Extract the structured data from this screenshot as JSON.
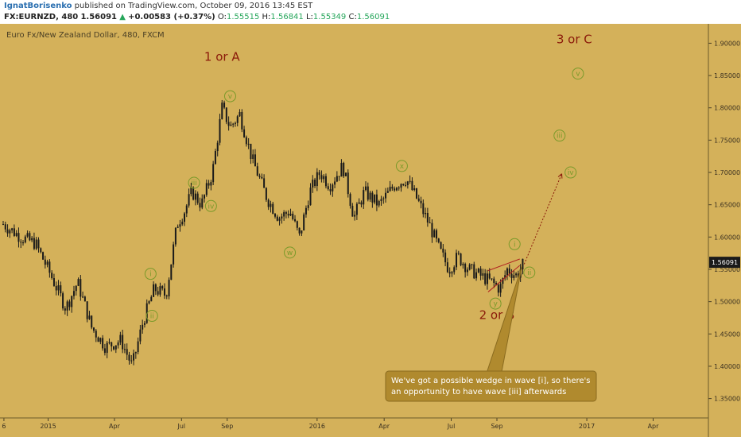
{
  "header": {
    "author": "IgnatBorisenko",
    "published_text": " published on TradingView.com, October 09, 2016 13:45 EST",
    "symbol_interval": "FX:EURNZD, 480",
    "last": "1.56091",
    "change_arrow": "▲",
    "change": "+0.00583 (+0.37%)",
    "o_label": "O:",
    "o_value": "1.55515",
    "h_label": "H:",
    "h_value": "1.56841",
    "l_label": "L:",
    "l_value": "1.55349",
    "c_label": "C:",
    "c_value": "1.56091"
  },
  "colors": {
    "background": "#d4b15a",
    "candle": "#1a1a1a",
    "wave_circle": "#7a9a2a",
    "wave_label": "#8b1a0a",
    "callout_bg": "#b08a2e"
  },
  "chart_data": {
    "type": "candlestick",
    "title": "Euro Fx/New Zealand Dollar, 480, FXCM",
    "ylim": [
      1.32,
      1.93
    ],
    "yticks": [
      "1.90000",
      "1.85000",
      "1.80000",
      "1.75000",
      "1.70000",
      "1.65000",
      "1.60000",
      "1.55000",
      "1.50000",
      "1.45000",
      "1.40000",
      "1.35000"
    ],
    "ytick_values": [
      1.9,
      1.85,
      1.8,
      1.75,
      1.7,
      1.65,
      1.6,
      1.55,
      1.5,
      1.45,
      1.4,
      1.35
    ],
    "last_price_label": "1.56091",
    "last_price": 1.56091,
    "xlim": [
      "2014-11-01",
      "2017-06-15"
    ],
    "xticks": [
      {
        "label": "6",
        "date": "2014-11-02"
      },
      {
        "label": "2015",
        "date": "2015-01-01"
      },
      {
        "label": "Apr",
        "date": "2015-04-01"
      },
      {
        "label": "Jul",
        "date": "2015-07-01"
      },
      {
        "label": "Sep",
        "date": "2015-09-01"
      },
      {
        "label": "2016",
        "date": "2016-01-01"
      },
      {
        "label": "Apr",
        "date": "2016-04-01"
      },
      {
        "label": "Jul",
        "date": "2016-07-01"
      },
      {
        "label": "Sep",
        "date": "2016-09-01"
      },
      {
        "label": "2017",
        "date": "2017-01-01"
      },
      {
        "label": "Apr",
        "date": "2017-04-01"
      }
    ],
    "price_path": [
      [
        "2014-11-01",
        1.62
      ],
      [
        "2014-11-25",
        1.6
      ],
      [
        "2014-12-15",
        1.59
      ],
      [
        "2015-01-05",
        1.54
      ],
      [
        "2015-01-25",
        1.49
      ],
      [
        "2015-02-10",
        1.53
      ],
      [
        "2015-03-01",
        1.46
      ],
      [
        "2015-03-20",
        1.43
      ],
      [
        "2015-04-10",
        1.44
      ],
      [
        "2015-04-25",
        1.4
      ],
      [
        "2015-05-10",
        1.47
      ],
      [
        "2015-05-25",
        1.52
      ],
      [
        "2015-06-10",
        1.51
      ],
      [
        "2015-06-25",
        1.62
      ],
      [
        "2015-07-05",
        1.64
      ],
      [
        "2015-07-15",
        1.67
      ],
      [
        "2015-07-28",
        1.65
      ],
      [
        "2015-08-12",
        1.7
      ],
      [
        "2015-08-25",
        1.8
      ],
      [
        "2015-09-05",
        1.77
      ],
      [
        "2015-09-18",
        1.79
      ],
      [
        "2015-10-05",
        1.72
      ],
      [
        "2015-10-25",
        1.66
      ],
      [
        "2015-11-10",
        1.63
      ],
      [
        "2015-11-25",
        1.64
      ],
      [
        "2015-12-08",
        1.6
      ],
      [
        "2015-12-22",
        1.67
      ],
      [
        "2016-01-05",
        1.7
      ],
      [
        "2016-01-18",
        1.68
      ],
      [
        "2016-02-05",
        1.71
      ],
      [
        "2016-02-20",
        1.63
      ],
      [
        "2016-03-05",
        1.67
      ],
      [
        "2016-03-25",
        1.65
      ],
      [
        "2016-04-15",
        1.68
      ],
      [
        "2016-05-01",
        1.69
      ],
      [
        "2016-05-15",
        1.66
      ],
      [
        "2016-06-01",
        1.62
      ],
      [
        "2016-06-15",
        1.58
      ],
      [
        "2016-06-28",
        1.55
      ],
      [
        "2016-07-10",
        1.57
      ],
      [
        "2016-07-25",
        1.55
      ],
      [
        "2016-08-10",
        1.54
      ],
      [
        "2016-08-25",
        1.53
      ],
      [
        "2016-09-05",
        1.52
      ],
      [
        "2016-09-15",
        1.55
      ],
      [
        "2016-09-28",
        1.54
      ],
      [
        "2016-10-08",
        1.56091
      ]
    ],
    "wave_labels": [
      {
        "text": "1 or A",
        "date": "2015-08-25",
        "price": 1.873
      },
      {
        "text": "2 or B",
        "date": "2016-09-01",
        "price": 1.473
      },
      {
        "text": "3 or C",
        "date": "2016-12-15",
        "price": 1.9
      }
    ],
    "wave_circles": [
      {
        "text": "i",
        "date": "2015-05-20",
        "price": 1.543
      },
      {
        "text": "ii",
        "date": "2015-05-22",
        "price": 1.478
      },
      {
        "text": "iii",
        "date": "2015-07-18",
        "price": 1.684
      },
      {
        "text": "iv",
        "date": "2015-08-10",
        "price": 1.648
      },
      {
        "text": "v",
        "date": "2015-09-05",
        "price": 1.818
      },
      {
        "text": "w",
        "date": "2015-11-25",
        "price": 1.576
      },
      {
        "text": "x",
        "date": "2016-04-25",
        "price": 1.71
      },
      {
        "text": "y",
        "date": "2016-08-30",
        "price": 1.497
      },
      {
        "text": "i",
        "date": "2016-09-25",
        "price": 1.589
      },
      {
        "text": "ii",
        "date": "2016-10-15",
        "price": 1.545
      },
      {
        "text": "iii",
        "date": "2016-11-25",
        "price": 1.757
      },
      {
        "text": "iv",
        "date": "2016-12-10",
        "price": 1.7
      },
      {
        "text": "v",
        "date": "2016-12-20",
        "price": 1.853
      }
    ],
    "wedge": {
      "upper": [
        [
          "2016-08-20",
          1.548
        ],
        [
          "2016-10-02",
          1.566
        ]
      ],
      "lower": [
        [
          "2016-08-20",
          1.515
        ],
        [
          "2016-10-02",
          1.556
        ]
      ]
    },
    "projection": [
      [
        "2016-10-08",
        1.558
      ],
      [
        "2016-11-28",
        1.698
      ]
    ],
    "callout": {
      "line1": "We've got a possible wedge in wave [i], so there's",
      "line2": "an opportunity to have wave [iii] afterwards",
      "pointer_date": "2016-10-05",
      "pointer_price": 1.555
    }
  }
}
